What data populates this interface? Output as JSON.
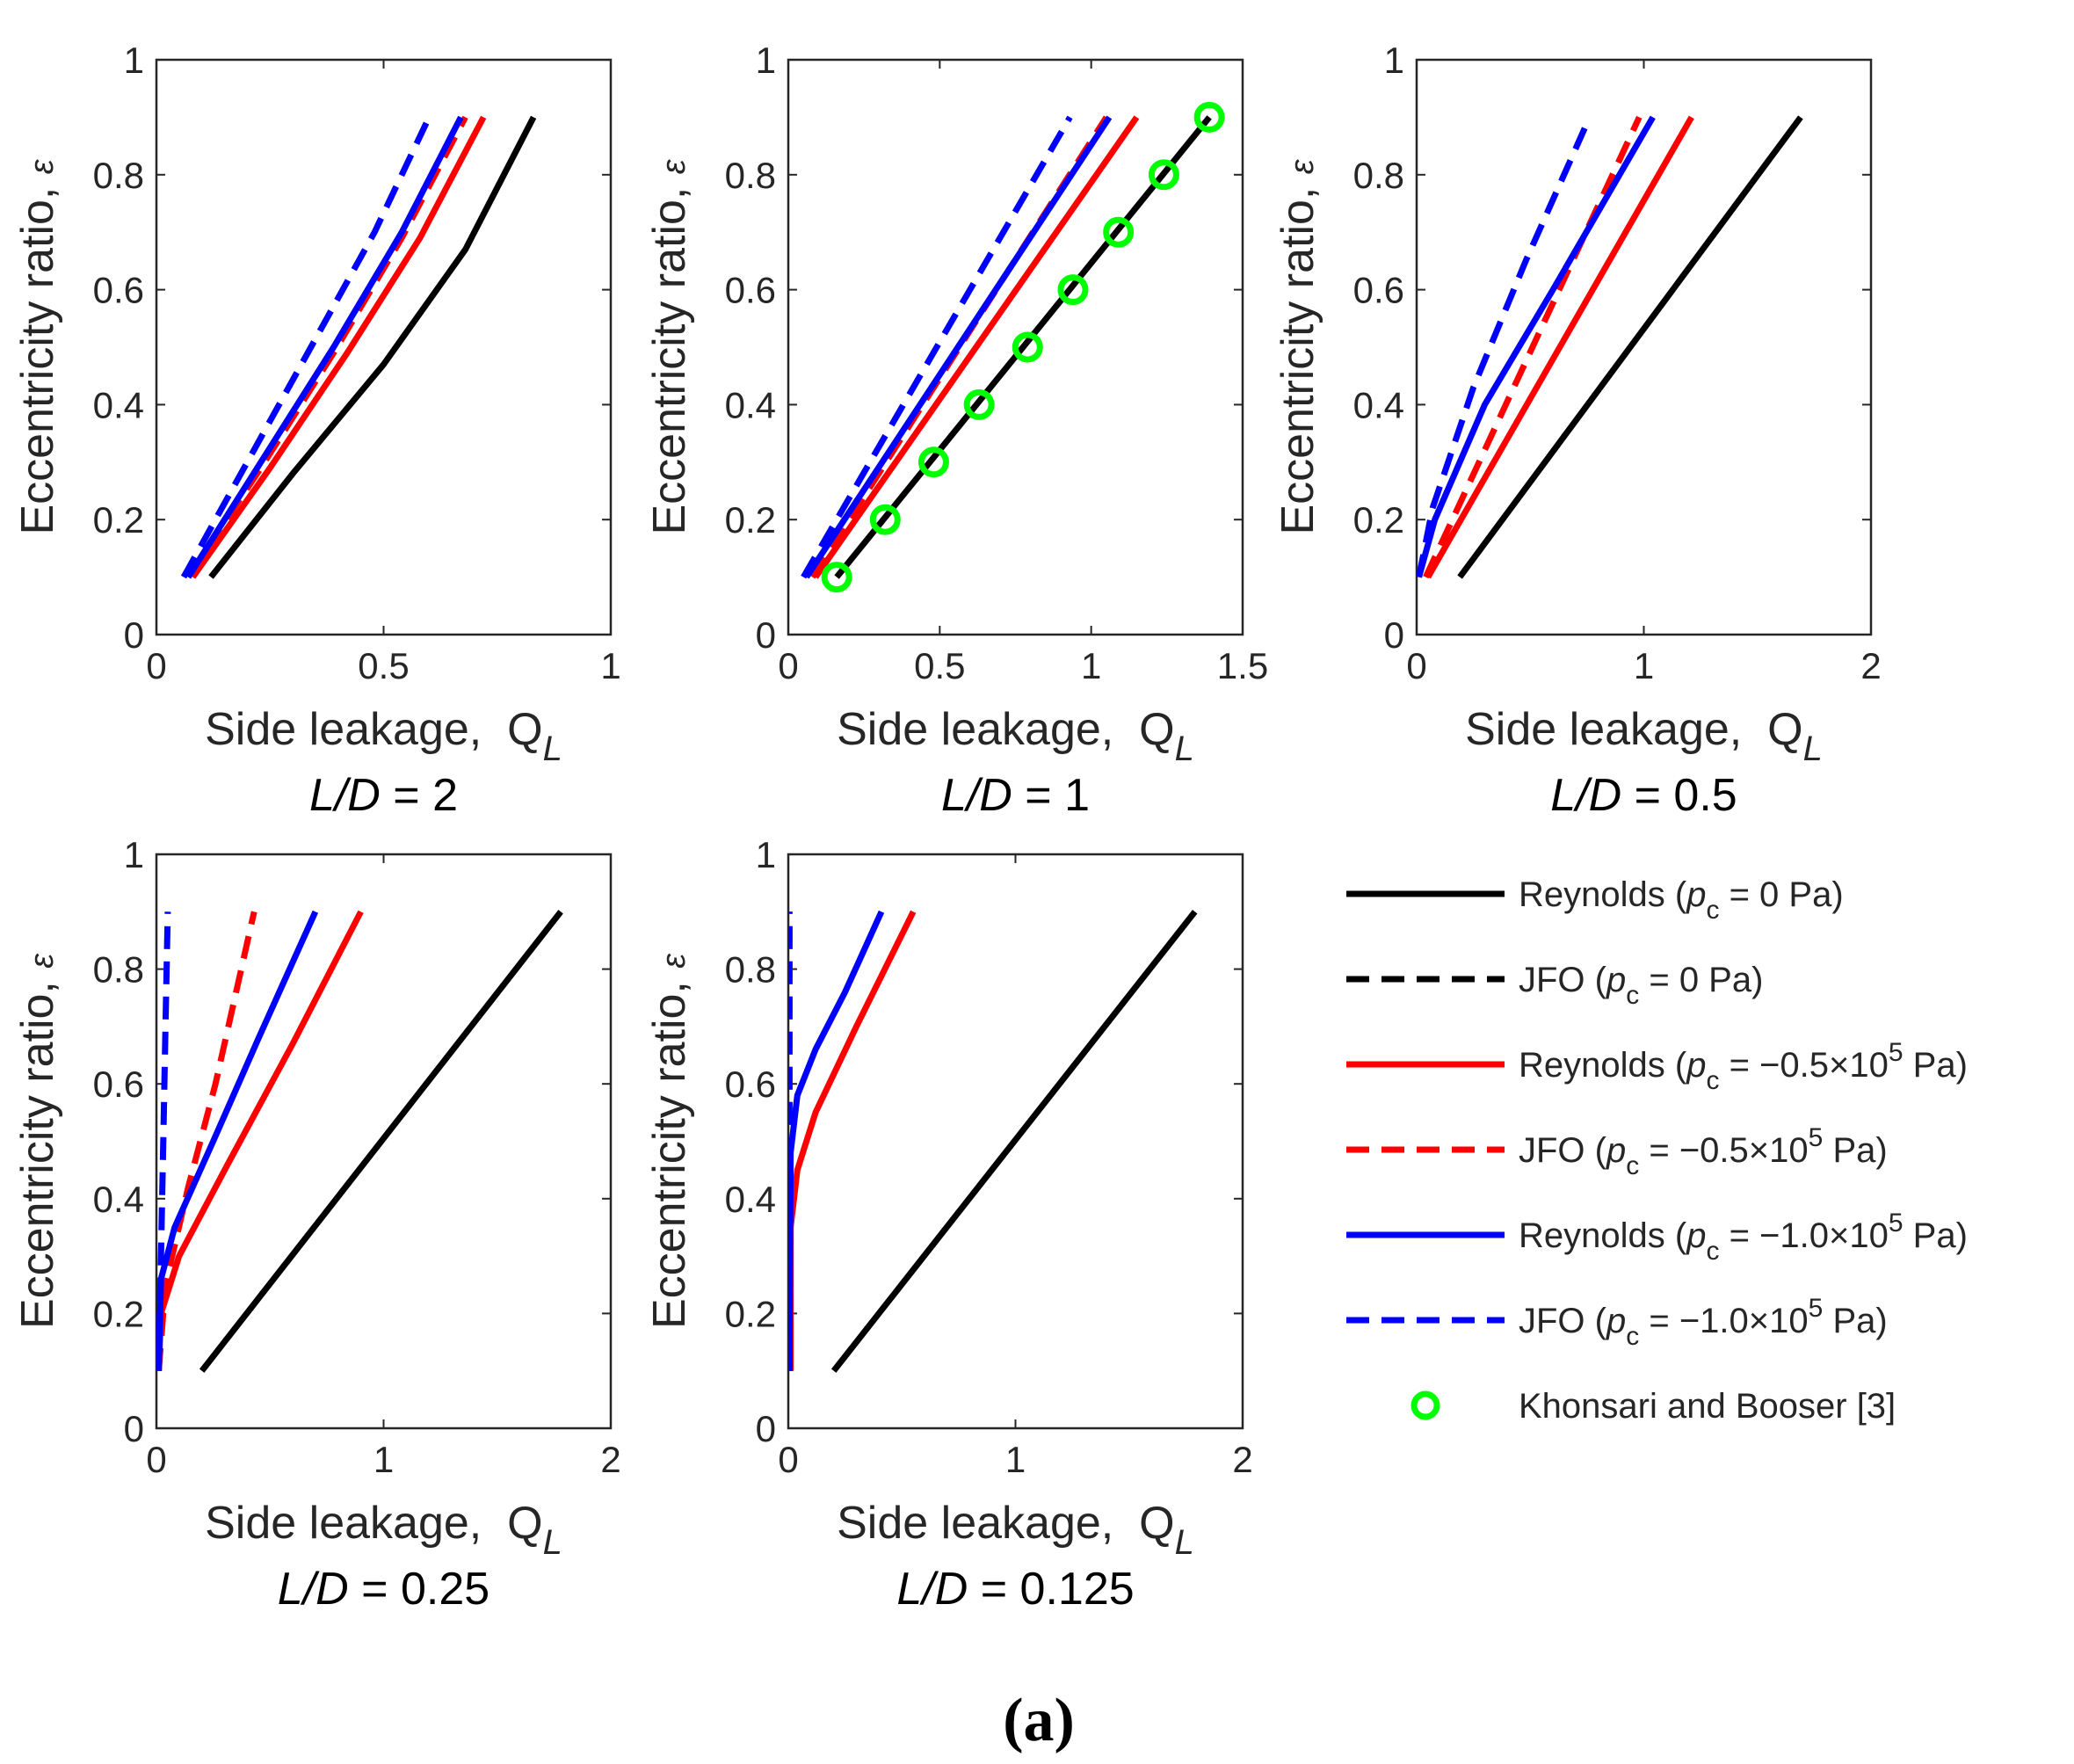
{
  "figure_label": "(a)",
  "legend": [
    {
      "label_pre": "Reynolds (",
      "sym": "p",
      "sub": "c",
      "mid": " = 0 Pa)",
      "sup": "",
      "post": "",
      "color": "#000000",
      "dash": false,
      "marker": false
    },
    {
      "label_pre": "JFO (",
      "sym": "p",
      "sub": "c",
      "mid": " = 0 Pa)",
      "sup": "",
      "post": "",
      "color": "#000000",
      "dash": true,
      "marker": false
    },
    {
      "label_pre": "Reynolds (",
      "sym": "p",
      "sub": "c",
      "mid": " = −0.5×10",
      "sup": "5",
      "post": " Pa)",
      "color": "#ff0000",
      "dash": false,
      "marker": false
    },
    {
      "label_pre": "JFO (",
      "sym": "p",
      "sub": "c",
      "mid": " = −0.5×10",
      "sup": "5",
      "post": " Pa)",
      "color": "#ff0000",
      "dash": true,
      "marker": false
    },
    {
      "label_pre": "Reynolds (",
      "sym": "p",
      "sub": "c",
      "mid": " = −1.0×10",
      "sup": "5",
      "post": " Pa)",
      "color": "#0000ff",
      "dash": false,
      "marker": false
    },
    {
      "label_pre": "JFO (",
      "sym": "p",
      "sub": "c",
      "mid": " = −1.0×10",
      "sup": "5",
      "post": " Pa)",
      "color": "#0000ff",
      "dash": true,
      "marker": false
    },
    {
      "label_pre": "Khonsari and Booser [3]",
      "sym": "",
      "sub": "",
      "mid": "",
      "sup": "",
      "post": "",
      "color": "#00ff00",
      "dash": false,
      "marker": true
    }
  ],
  "chart_data": [
    {
      "type": "line",
      "title": "L/D = 2",
      "title_it": "L/D",
      "title_val": " = 2",
      "xlabel": "Side leakage,",
      "xsym": "Q",
      "xsub": "L",
      "ylabel": "Eccentricity ratio,",
      "ysym": "ε",
      "xlim": [
        0,
        1
      ],
      "ylim": [
        0,
        1
      ],
      "xticks": [
        0,
        0.5,
        1
      ],
      "xticklabels": [
        "0",
        "0.5",
        "1"
      ],
      "yticks": [
        0,
        0.2,
        0.4,
        0.6,
        0.8,
        1
      ],
      "yticklabels": [
        "0",
        "0.2",
        "0.4",
        "0.6",
        "0.8",
        "1"
      ],
      "series": [
        {
          "name": "Reynolds (pc = 0 Pa)",
          "color": "#000000",
          "dash": false,
          "x": [
            0.12,
            0.3,
            0.5,
            0.68,
            0.83
          ],
          "y": [
            0.1,
            0.28,
            0.47,
            0.67,
            0.9
          ]
        },
        {
          "name": "Reynolds (pc = -0.5e5 Pa)",
          "color": "#ff0000",
          "dash": false,
          "x": [
            0.08,
            0.25,
            0.42,
            0.58,
            0.72
          ],
          "y": [
            0.1,
            0.29,
            0.49,
            0.69,
            0.9
          ]
        },
        {
          "name": "JFO (pc = -0.5e5 Pa)",
          "color": "#ff0000",
          "dash": true,
          "x": [
            0.07,
            0.23,
            0.39,
            0.54,
            0.68
          ],
          "y": [
            0.1,
            0.29,
            0.49,
            0.69,
            0.9
          ]
        },
        {
          "name": "Reynolds (pc = -1.0e5 Pa)",
          "color": "#0000ff",
          "dash": false,
          "x": [
            0.07,
            0.23,
            0.39,
            0.54,
            0.67
          ],
          "y": [
            0.1,
            0.3,
            0.5,
            0.7,
            0.9
          ]
        },
        {
          "name": "JFO (pc = -1.0e5 Pa)",
          "color": "#0000ff",
          "dash": true,
          "x": [
            0.06,
            0.2,
            0.34,
            0.48,
            0.6
          ],
          "y": [
            0.1,
            0.3,
            0.5,
            0.7,
            0.9
          ]
        }
      ],
      "markers": []
    },
    {
      "type": "line",
      "title": "L/D = 1",
      "title_it": "L/D",
      "title_val": " = 1",
      "xlabel": "Side leakage,",
      "xsym": "Q",
      "xsub": "L",
      "ylabel": "Eccentricity ratio,",
      "ysym": "ε",
      "xlim": [
        0,
        1.5
      ],
      "ylim": [
        0,
        1
      ],
      "xticks": [
        0,
        0.5,
        1,
        1.5
      ],
      "xticklabels": [
        "0",
        "0.5",
        "1",
        "1.5"
      ],
      "yticks": [
        0,
        0.2,
        0.4,
        0.6,
        0.8,
        1
      ],
      "yticklabels": [
        "0",
        "0.2",
        "0.4",
        "0.6",
        "0.8",
        "1"
      ],
      "series": [
        {
          "name": "Reynolds (pc = 0 Pa)",
          "color": "#000000",
          "dash": false,
          "x": [
            0.16,
            1.39
          ],
          "y": [
            0.1,
            0.9
          ]
        },
        {
          "name": "Reynolds (pc = -0.5e5 Pa)",
          "color": "#ff0000",
          "dash": false,
          "x": [
            0.09,
            1.15
          ],
          "y": [
            0.1,
            0.9
          ]
        },
        {
          "name": "JFO (pc = -0.5e5 Pa)",
          "color": "#ff0000",
          "dash": true,
          "x": [
            0.08,
            1.05
          ],
          "y": [
            0.1,
            0.9
          ]
        },
        {
          "name": "Reynolds (pc = -1.0e5 Pa)",
          "color": "#0000ff",
          "dash": false,
          "x": [
            0.06,
            1.06
          ],
          "y": [
            0.1,
            0.9
          ]
        },
        {
          "name": "JFO (pc = -1.0e5 Pa)",
          "color": "#0000ff",
          "dash": true,
          "x": [
            0.05,
            0.93
          ],
          "y": [
            0.1,
            0.9
          ]
        }
      ],
      "markers": [
        {
          "name": "Khonsari and Booser [3]",
          "color": "#00ff00",
          "x": [
            0.16,
            0.32,
            0.48,
            0.63,
            0.79,
            0.94,
            1.09,
            1.24,
            1.39
          ],
          "y": [
            0.1,
            0.2,
            0.3,
            0.4,
            0.5,
            0.6,
            0.7,
            0.8,
            0.9
          ]
        }
      ]
    },
    {
      "type": "line",
      "title": "L/D = 0.5",
      "title_it": "L/D",
      "title_val": " = 0.5",
      "xlabel": "Side leakage,",
      "xsym": "Q",
      "xsub": "L",
      "ylabel": "Eccentricity ratio,",
      "ysym": "ε",
      "xlim": [
        0,
        2
      ],
      "ylim": [
        0,
        1
      ],
      "xticks": [
        0,
        1,
        2
      ],
      "xticklabels": [
        "0",
        "1",
        "2"
      ],
      "yticks": [
        0,
        0.2,
        0.4,
        0.6,
        0.8,
        1
      ],
      "yticklabels": [
        "0",
        "0.2",
        "0.4",
        "0.6",
        "0.8",
        "1"
      ],
      "series": [
        {
          "name": "Reynolds (pc = 0 Pa)",
          "color": "#000000",
          "dash": false,
          "x": [
            0.19,
            1.69
          ],
          "y": [
            0.1,
            0.9
          ]
        },
        {
          "name": "Reynolds (pc = -0.5e5 Pa)",
          "color": "#ff0000",
          "dash": false,
          "x": [
            0.05,
            1.21
          ],
          "y": [
            0.1,
            0.9
          ]
        },
        {
          "name": "JFO (pc = -0.5e5 Pa)",
          "color": "#ff0000",
          "dash": true,
          "x": [
            0.04,
            0.98
          ],
          "y": [
            0.1,
            0.9
          ]
        },
        {
          "name": "Reynolds (pc = -1.0e5 Pa)",
          "color": "#0000ff",
          "dash": false,
          "x": [
            0.01,
            0.08,
            0.3,
            0.6,
            1.04
          ],
          "y": [
            0.1,
            0.2,
            0.4,
            0.6,
            0.9
          ]
        },
        {
          "name": "JFO (pc = -1.0e5 Pa)",
          "color": "#0000ff",
          "dash": true,
          "x": [
            0.01,
            0.07,
            0.25,
            0.48,
            0.75
          ],
          "y": [
            0.1,
            0.22,
            0.43,
            0.65,
            0.89
          ]
        }
      ],
      "markers": []
    },
    {
      "type": "line",
      "title": "L/D = 0.25",
      "title_it": "L/D",
      "title_val": " = 0.25",
      "xlabel": "Side leakage,",
      "xsym": "Q",
      "xsub": "L",
      "ylabel": "Eccentricity ratio,",
      "ysym": "ε",
      "xlim": [
        0,
        2
      ],
      "ylim": [
        0,
        1
      ],
      "xticks": [
        0,
        1,
        2
      ],
      "xticklabels": [
        "0",
        "1",
        "2"
      ],
      "yticks": [
        0,
        0.2,
        0.4,
        0.6,
        0.8,
        1
      ],
      "yticklabels": [
        "0",
        "0.2",
        "0.4",
        "0.6",
        "0.8",
        "1"
      ],
      "series": [
        {
          "name": "Reynolds (pc = 0 Pa)",
          "color": "#000000",
          "dash": false,
          "x": [
            0.2,
            1.78
          ],
          "y": [
            0.1,
            0.9
          ]
        },
        {
          "name": "Reynolds (pc = -0.5e5 Pa)",
          "color": "#ff0000",
          "dash": false,
          "x": [
            0.01,
            0.02,
            0.1,
            0.3,
            0.6,
            0.9
          ],
          "y": [
            0.1,
            0.2,
            0.3,
            0.45,
            0.67,
            0.9
          ]
        },
        {
          "name": "JFO (pc = -0.5e5 Pa)",
          "color": "#ff0000",
          "dash": true,
          "x": [
            0.01,
            0.04,
            0.14,
            0.26,
            0.43
          ],
          "y": [
            0.1,
            0.25,
            0.42,
            0.6,
            0.9
          ]
        },
        {
          "name": "Reynolds (pc = -1.0e5 Pa)",
          "color": "#0000ff",
          "dash": false,
          "x": [
            0.01,
            0.02,
            0.08,
            0.25,
            0.45,
            0.7
          ],
          "y": [
            0.1,
            0.26,
            0.35,
            0.5,
            0.68,
            0.9
          ]
        },
        {
          "name": "JFO (pc = -1.0e5 Pa)",
          "color": "#0000ff",
          "dash": true,
          "x": [
            0.01,
            0.02,
            0.03,
            0.04,
            0.05
          ],
          "y": [
            0.1,
            0.3,
            0.5,
            0.7,
            0.9
          ]
        }
      ],
      "markers": []
    },
    {
      "type": "line",
      "title": "L/D = 0.125",
      "title_it": "L/D",
      "title_val": " = 0.125",
      "xlabel": "Side leakage,",
      "xsym": "Q",
      "xsub": "L",
      "ylabel": "Eccentricity ratio,",
      "ysym": "ε",
      "xlim": [
        0,
        2
      ],
      "ylim": [
        0,
        1
      ],
      "xticks": [
        0,
        1,
        2
      ],
      "xticklabels": [
        "0",
        "1",
        "2"
      ],
      "yticks": [
        0,
        0.2,
        0.4,
        0.6,
        0.8,
        1
      ],
      "yticklabels": [
        "0",
        "0.2",
        "0.4",
        "0.6",
        "0.8",
        "1"
      ],
      "series": [
        {
          "name": "Reynolds (pc = 0 Pa)",
          "color": "#000000",
          "dash": false,
          "x": [
            0.2,
            1.79
          ],
          "y": [
            0.1,
            0.9
          ]
        },
        {
          "name": "Reynolds (pc = -0.5e5 Pa)",
          "color": "#ff0000",
          "dash": false,
          "x": [
            0.01,
            0.01,
            0.04,
            0.12,
            0.3,
            0.55
          ],
          "y": [
            0.1,
            0.35,
            0.45,
            0.55,
            0.7,
            0.9
          ]
        },
        {
          "name": "JFO (pc = -0.5e5 Pa)",
          "color": "#ff0000",
          "dash": true,
          "x": [
            0.005,
            0.005
          ],
          "y": [
            0.1,
            0.9
          ]
        },
        {
          "name": "Reynolds (pc = -1.0e5 Pa)",
          "color": "#0000ff",
          "dash": false,
          "x": [
            0.005,
            0.01,
            0.04,
            0.12,
            0.25,
            0.41
          ],
          "y": [
            0.1,
            0.48,
            0.58,
            0.66,
            0.76,
            0.9
          ]
        },
        {
          "name": "JFO (pc = -1.0e5 Pa)",
          "color": "#0000ff",
          "dash": true,
          "x": [
            0.005,
            0.005,
            0.005
          ],
          "y": [
            0.1,
            0.5,
            0.9
          ]
        }
      ],
      "markers": []
    }
  ]
}
